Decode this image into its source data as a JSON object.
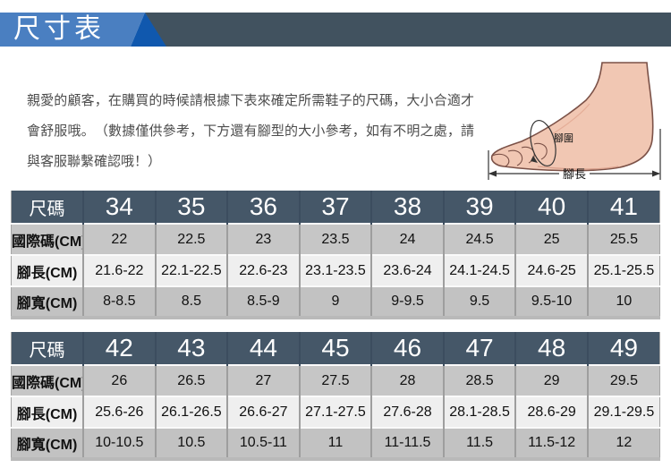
{
  "header": {
    "title": "尺寸表"
  },
  "intro": {
    "text": "親愛的顧客，在購買的時候請根據下表來確定所需鞋子的尺碼，大小合適才會舒服哦。　（數據僅供參考，下方還有腳型的大小參考，如有不明之處，請與客服聯繫確認哦！）"
  },
  "foot_diagram": {
    "girth_label": "腳圍",
    "length_label": "腳長"
  },
  "colors": {
    "blue": "#4a7fc1",
    "darkblue": "#1058ae",
    "slate": "#41525f",
    "thead": "#455768",
    "rowgray": "#c6c6c6",
    "rowlight": "#efefef",
    "rowgray2": "#c2c2c2",
    "sep": "#9e9e9e"
  },
  "tables": [
    {
      "name": "sizes-34-41",
      "rows": [
        [
          "尺碼",
          "34",
          "35",
          "36",
          "37",
          "38",
          "39",
          "40",
          "41"
        ],
        [
          "國際碼(CM)",
          "22",
          "22.5",
          "23",
          "23.5",
          "24",
          "24.5",
          "25",
          "25.5"
        ],
        [
          "腳長(CM)",
          "21.6-22",
          "22.1-22.5",
          "22.6-23",
          "23.1-23.5",
          "23.6-24",
          "24.1-24.5",
          "24.6-25",
          "25.1-25.5"
        ],
        [
          "腳寬(CM)",
          "8-8.5",
          "8.5",
          "8.5-9",
          "9",
          "9-9.5",
          "9.5",
          "9.5-10",
          "10"
        ]
      ]
    },
    {
      "name": "sizes-42-49",
      "rows": [
        [
          "尺碼",
          "42",
          "43",
          "44",
          "45",
          "46",
          "47",
          "48",
          "49"
        ],
        [
          "國際碼(CM)",
          "26",
          "26.5",
          "27",
          "27.5",
          "28",
          "28.5",
          "29",
          "29.5"
        ],
        [
          "腳長(CM)",
          "25.6-26",
          "26.1-26.5",
          "26.6-27",
          "27.1-27.5",
          "27.6-28",
          "28.1-28.5",
          "28.6-29",
          "29.1-29.5"
        ],
        [
          "腳寬(CM)",
          "10-10.5",
          "10.5",
          "10.5-11",
          "11",
          "11-11.5",
          "11.5",
          "11.5-12",
          "12"
        ]
      ]
    }
  ]
}
